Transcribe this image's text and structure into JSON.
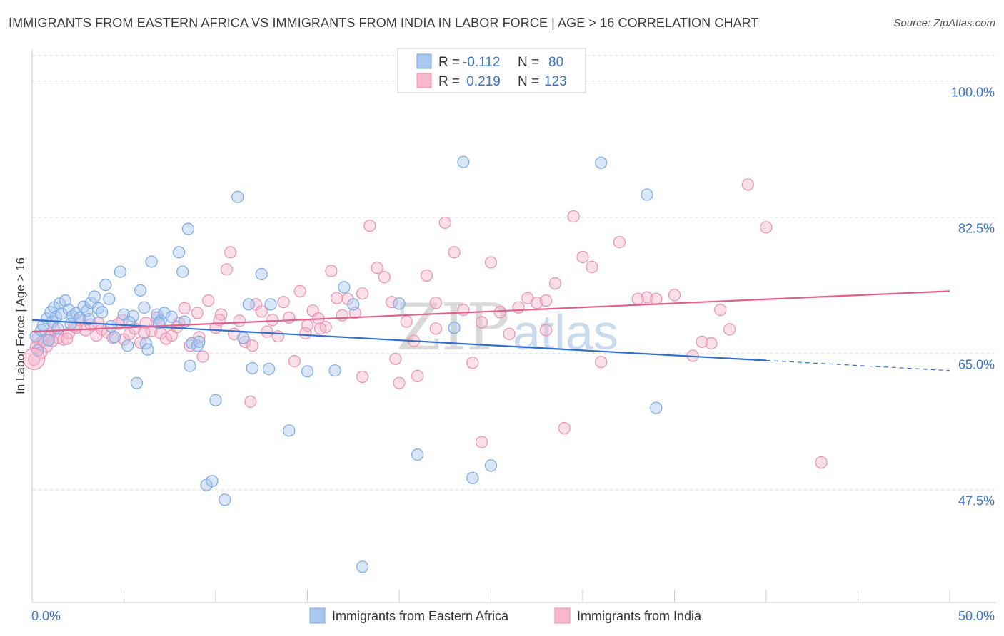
{
  "header": {
    "title": "IMMIGRANTS FROM EASTERN AFRICA VS IMMIGRANTS FROM INDIA IN LABOR FORCE | AGE > 16 CORRELATION CHART",
    "source": "Source: ZipAtlas.com"
  },
  "watermark": {
    "zip": "ZIP",
    "atlas": "atlas"
  },
  "chart_data": {
    "type": "scatter",
    "title": "IMMIGRANTS FROM EASTERN AFRICA VS IMMIGRANTS FROM INDIA IN LABOR FORCE | AGE > 16 CORRELATION CHART",
    "ylabel": "In Labor Force | Age > 16",
    "xlim": [
      0,
      50
    ],
    "ylim": [
      33,
      104
    ],
    "x_tick_labels": {
      "min": "0.0%",
      "max": "50.0%"
    },
    "y_ticks": [
      {
        "value": 100.0,
        "label": "100.0%"
      },
      {
        "value": 82.5,
        "label": "82.5%"
      },
      {
        "value": 65.0,
        "label": "65.0%"
      },
      {
        "value": 47.5,
        "label": "47.5%"
      }
    ],
    "grid": "horizontal dashed",
    "legend_top": [
      {
        "r_label": "R =",
        "r_value": "-0.112",
        "n_label": "N =",
        "n_value": "80",
        "color": "#a9c8f0"
      },
      {
        "r_label": "R =",
        "r_value": " 0.219",
        "n_label": "N =",
        "n_value": "123",
        "color": "#f7b8cb"
      }
    ],
    "series": [
      {
        "name": "Immigrants from Eastern Africa",
        "color": "#7aa9e6",
        "fill": "#a9c8f0",
        "line_color": "#2f6fcf",
        "trend": {
          "x0": 0,
          "y0": 69.3,
          "x1": 40,
          "y1": 64.1,
          "dash_to_x": 50,
          "dash_to_y": 62.8
        },
        "points": [
          [
            0.2,
            67.2
          ],
          [
            0.3,
            65.4
          ],
          [
            0.5,
            68.0
          ],
          [
            0.6,
            68.6
          ],
          [
            0.8,
            69.5
          ],
          [
            1.0,
            70.3
          ],
          [
            1.1,
            69.1
          ],
          [
            1.2,
            70.9
          ],
          [
            1.3,
            69.7
          ],
          [
            1.5,
            71.4
          ],
          [
            1.6,
            70.1
          ],
          [
            1.8,
            71.8
          ],
          [
            2.0,
            70.6
          ],
          [
            2.2,
            69.8
          ],
          [
            2.4,
            70.2
          ],
          [
            2.6,
            69.6
          ],
          [
            2.8,
            71.0
          ],
          [
            3.0,
            70.5
          ],
          [
            3.2,
            71.5
          ],
          [
            3.4,
            72.3
          ],
          [
            3.6,
            70.8
          ],
          [
            3.8,
            70.3
          ],
          [
            4.0,
            73.8
          ],
          [
            4.2,
            72.0
          ],
          [
            4.5,
            67.1
          ],
          [
            4.8,
            75.5
          ],
          [
            5.0,
            70.0
          ],
          [
            5.2,
            66.0
          ],
          [
            5.5,
            69.8
          ],
          [
            5.7,
            61.2
          ],
          [
            5.9,
            73.1
          ],
          [
            6.1,
            70.9
          ],
          [
            6.2,
            66.3
          ],
          [
            6.3,
            65.5
          ],
          [
            6.5,
            76.8
          ],
          [
            6.8,
            70.0
          ],
          [
            7.0,
            69.2
          ],
          [
            7.2,
            70.2
          ],
          [
            8.0,
            78.0
          ],
          [
            8.2,
            75.5
          ],
          [
            8.5,
            81.0
          ],
          [
            8.6,
            63.4
          ],
          [
            8.7,
            66.3
          ],
          [
            9.0,
            66.0
          ],
          [
            9.5,
            48.1
          ],
          [
            9.8,
            48.6
          ],
          [
            10.0,
            59.0
          ],
          [
            10.5,
            46.2
          ],
          [
            11.2,
            85.1
          ],
          [
            11.8,
            71.3
          ],
          [
            12.0,
            63.1
          ],
          [
            12.5,
            75.2
          ],
          [
            13.0,
            71.3
          ],
          [
            14.0,
            55.1
          ],
          [
            15.0,
            62.7
          ],
          [
            17.0,
            73.5
          ],
          [
            17.5,
            71.3
          ],
          [
            18.0,
            37.6
          ],
          [
            20.0,
            71.4
          ],
          [
            21.0,
            52.0
          ],
          [
            23.0,
            68.3
          ],
          [
            23.5,
            89.6
          ],
          [
            24.0,
            49.0
          ],
          [
            25.0,
            50.6
          ],
          [
            31.0,
            89.5
          ],
          [
            33.5,
            85.4
          ],
          [
            34.0,
            58.0
          ],
          [
            4.3,
            68.5
          ],
          [
            6.9,
            68.9
          ],
          [
            3.1,
            69.4
          ],
          [
            2.1,
            68.8
          ],
          [
            0.9,
            66.7
          ],
          [
            1.4,
            68.2
          ],
          [
            8.3,
            69.1
          ],
          [
            9.1,
            66.5
          ],
          [
            12.9,
            63.0
          ],
          [
            16.5,
            62.8
          ],
          [
            11.5,
            67.0
          ],
          [
            7.6,
            69.7
          ],
          [
            5.3,
            69.0
          ]
        ]
      },
      {
        "name": "Immigrants from India",
        "color": "#ec8fae",
        "fill": "#f7b8cb",
        "line_color": "#e0608c",
        "trend": {
          "x0": 0,
          "y0": 67.8,
          "x1": 50,
          "y1": 73.0
        },
        "points": [
          [
            0.1,
            64.2
          ],
          [
            0.2,
            65.8
          ],
          [
            0.3,
            67.0
          ],
          [
            0.4,
            66.2
          ],
          [
            0.6,
            66.7
          ],
          [
            0.8,
            65.9
          ],
          [
            1.0,
            67.5
          ],
          [
            1.2,
            68.1
          ],
          [
            1.4,
            67.0
          ],
          [
            1.7,
            66.8
          ],
          [
            2.0,
            67.6
          ],
          [
            2.3,
            68.5
          ],
          [
            2.6,
            69.3
          ],
          [
            2.9,
            68.0
          ],
          [
            3.2,
            68.7
          ],
          [
            3.5,
            67.3
          ],
          [
            3.8,
            68.1
          ],
          [
            4.1,
            67.7
          ],
          [
            4.4,
            67.0
          ],
          [
            4.7,
            68.8
          ],
          [
            5.0,
            66.8
          ],
          [
            5.3,
            67.5
          ],
          [
            5.6,
            68.2
          ],
          [
            5.9,
            66.4
          ],
          [
            6.2,
            68.9
          ],
          [
            6.5,
            67.9
          ],
          [
            6.8,
            69.6
          ],
          [
            7.0,
            67.6
          ],
          [
            7.3,
            66.9
          ],
          [
            7.6,
            67.3
          ],
          [
            8.0,
            68.9
          ],
          [
            8.3,
            70.8
          ],
          [
            8.6,
            66.0
          ],
          [
            9.0,
            70.2
          ],
          [
            9.3,
            64.6
          ],
          [
            9.6,
            71.8
          ],
          [
            10.0,
            68.3
          ],
          [
            10.3,
            70.0
          ],
          [
            10.6,
            75.8
          ],
          [
            10.8,
            78.0
          ],
          [
            11.0,
            67.5
          ],
          [
            11.3,
            69.2
          ],
          [
            11.6,
            66.5
          ],
          [
            11.9,
            58.8
          ],
          [
            12.2,
            71.3
          ],
          [
            12.5,
            70.4
          ],
          [
            12.8,
            67.8
          ],
          [
            13.1,
            69.3
          ],
          [
            13.4,
            67.2
          ],
          [
            13.7,
            71.6
          ],
          [
            14.0,
            69.6
          ],
          [
            14.3,
            64.0
          ],
          [
            14.6,
            73.0
          ],
          [
            15.0,
            68.6
          ],
          [
            15.3,
            70.5
          ],
          [
            15.6,
            69.5
          ],
          [
            16.0,
            68.4
          ],
          [
            16.3,
            75.6
          ],
          [
            16.6,
            72.1
          ],
          [
            16.9,
            69.9
          ],
          [
            17.2,
            72.0
          ],
          [
            17.6,
            70.2
          ],
          [
            18.0,
            72.7
          ],
          [
            18.4,
            81.4
          ],
          [
            18.8,
            76.0
          ],
          [
            19.2,
            74.8
          ],
          [
            19.6,
            71.6
          ],
          [
            20.0,
            61.2
          ],
          [
            20.4,
            69.1
          ],
          [
            20.8,
            66.6
          ],
          [
            21.5,
            75.0
          ],
          [
            22.0,
            71.5
          ],
          [
            22.5,
            81.8
          ],
          [
            23.0,
            78.0
          ],
          [
            23.5,
            70.6
          ],
          [
            24.0,
            63.8
          ],
          [
            24.5,
            69.0
          ],
          [
            25.0,
            76.7
          ],
          [
            25.5,
            70.3
          ],
          [
            26.0,
            67.5
          ],
          [
            27.0,
            72.1
          ],
          [
            27.5,
            71.5
          ],
          [
            28.0,
            71.8
          ],
          [
            28.5,
            74.0
          ],
          [
            29.0,
            55.4
          ],
          [
            29.5,
            82.6
          ],
          [
            30.0,
            77.4
          ],
          [
            30.5,
            76.1
          ],
          [
            31.0,
            63.9
          ],
          [
            32.0,
            79.3
          ],
          [
            33.5,
            72.2
          ],
          [
            34.0,
            72.0
          ],
          [
            35.0,
            72.5
          ],
          [
            36.0,
            64.7
          ],
          [
            37.0,
            66.3
          ],
          [
            37.5,
            70.6
          ],
          [
            38.0,
            68.1
          ],
          [
            39.0,
            86.7
          ],
          [
            40.0,
            81.2
          ],
          [
            43.0,
            51.0
          ],
          [
            28.0,
            68.0
          ],
          [
            33.0,
            72.0
          ],
          [
            36.5,
            66.5
          ],
          [
            22.0,
            68.2
          ],
          [
            24.5,
            53.6
          ],
          [
            18.0,
            62.0
          ],
          [
            19.8,
            64.3
          ],
          [
            21.0,
            62.1
          ],
          [
            26.5,
            70.9
          ],
          [
            15.7,
            68.2
          ],
          [
            14.9,
            67.6
          ],
          [
            12.0,
            66.0
          ],
          [
            10.2,
            69.3
          ],
          [
            9.1,
            67.1
          ],
          [
            7.9,
            68.4
          ],
          [
            6.1,
            67.7
          ],
          [
            4.9,
            69.3
          ],
          [
            3.6,
            68.9
          ],
          [
            2.4,
            68.3
          ],
          [
            1.9,
            66.9
          ],
          [
            0.9,
            67.2
          ],
          [
            0.5,
            65.1
          ],
          [
            1.1,
            66.6
          ]
        ]
      }
    ]
  }
}
